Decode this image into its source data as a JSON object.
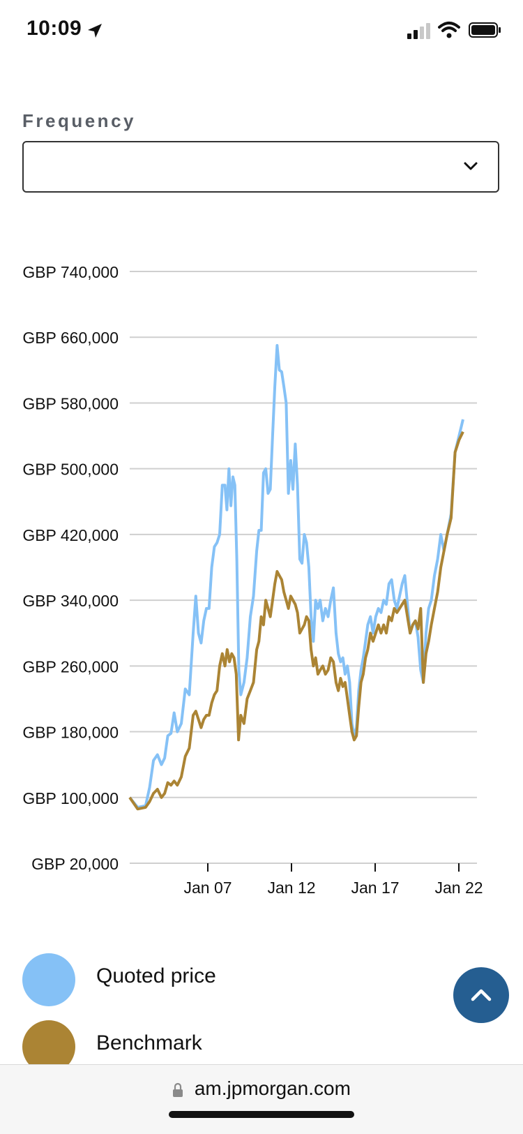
{
  "status_bar": {
    "time": "10:09"
  },
  "frequency": {
    "label": "Frequency",
    "selected": ""
  },
  "chart_data": {
    "type": "line",
    "ylim": [
      20000,
      740000
    ],
    "yticks": [
      20000,
      100000,
      180000,
      260000,
      340000,
      420000,
      500000,
      580000,
      660000,
      740000
    ],
    "ytick_labels": [
      "GBP 20,000",
      "GBP 100,000",
      "GBP 180,000",
      "GBP 260,000",
      "GBP 340,000",
      "GBP 420,000",
      "GBP 500,000",
      "GBP 580,000",
      "GBP 660,000",
      "GBP 740,000"
    ],
    "xticks": [
      "Jan 07",
      "Jan 12",
      "Jan 17",
      "Jan 22"
    ],
    "xlim": [
      "Jan 02",
      "Jan 23"
    ],
    "grid": true,
    "series": [
      {
        "name": "Quoted price",
        "color": "#85c1f6",
        "points": [
          [
            "Jan 02",
            100000
          ],
          [
            "Jan 02",
            88000
          ],
          [
            "Jan 03",
            90000
          ],
          [
            "Jan 03",
            112000
          ],
          [
            "Jan 03",
            145000
          ],
          [
            "Jan 03",
            152000
          ],
          [
            "Jan 04",
            140000
          ],
          [
            "Jan 04",
            148000
          ],
          [
            "Jan 04",
            175000
          ],
          [
            "Jan 04",
            178000
          ],
          [
            "Jan 04",
            203000
          ],
          [
            "Jan 05",
            180000
          ],
          [
            "Jan 05",
            190000
          ],
          [
            "Jan 05",
            232000
          ],
          [
            "Jan 05",
            225000
          ],
          [
            "Jan 06",
            300000
          ],
          [
            "Jan 06",
            345000
          ],
          [
            "Jan 06",
            300000
          ],
          [
            "Jan 06",
            288000
          ],
          [
            "Jan 06",
            315000
          ],
          [
            "Jan 06",
            330000
          ],
          [
            "Jan 07",
            330000
          ],
          [
            "Jan 07",
            380000
          ],
          [
            "Jan 07",
            405000
          ],
          [
            "Jan 07",
            410000
          ],
          [
            "Jan 07",
            420000
          ],
          [
            "Jan 07",
            480000
          ],
          [
            "Jan 08",
            480000
          ],
          [
            "Jan 08",
            450000
          ],
          [
            "Jan 08",
            500000
          ],
          [
            "Jan 08",
            455000
          ],
          [
            "Jan 08",
            490000
          ],
          [
            "Jan 08",
            480000
          ],
          [
            "Jan 08",
            390000
          ],
          [
            "Jan 08",
            255000
          ],
          [
            "Jan 09",
            225000
          ],
          [
            "Jan 09",
            240000
          ],
          [
            "Jan 09",
            270000
          ],
          [
            "Jan 09",
            320000
          ],
          [
            "Jan 09",
            345000
          ],
          [
            "Jan 10",
            400000
          ],
          [
            "Jan 10",
            425000
          ],
          [
            "Jan 10",
            425000
          ],
          [
            "Jan 10",
            495000
          ],
          [
            "Jan 10",
            500000
          ],
          [
            "Jan 10",
            470000
          ],
          [
            "Jan 10",
            475000
          ],
          [
            "Jan 11",
            540000
          ],
          [
            "Jan 11",
            600000
          ],
          [
            "Jan 11",
            650000
          ],
          [
            "Jan 11",
            620000
          ],
          [
            "Jan 11",
            618000
          ],
          [
            "Jan 11",
            600000
          ],
          [
            "Jan 11",
            580000
          ],
          [
            "Jan 12",
            470000
          ],
          [
            "Jan 12",
            510000
          ],
          [
            "Jan 12",
            475000
          ],
          [
            "Jan 12",
            530000
          ],
          [
            "Jan 12",
            480000
          ],
          [
            "Jan 12",
            390000
          ],
          [
            "Jan 12",
            385000
          ],
          [
            "Jan 13",
            420000
          ],
          [
            "Jan 13",
            410000
          ],
          [
            "Jan 13",
            380000
          ],
          [
            "Jan 13",
            320000
          ],
          [
            "Jan 13",
            290000
          ],
          [
            "Jan 13",
            340000
          ],
          [
            "Jan 13",
            330000
          ],
          [
            "Jan 14",
            340000
          ],
          [
            "Jan 14",
            315000
          ],
          [
            "Jan 14",
            330000
          ],
          [
            "Jan 14",
            320000
          ],
          [
            "Jan 14",
            340000
          ],
          [
            "Jan 14",
            355000
          ],
          [
            "Jan 15",
            300000
          ],
          [
            "Jan 15",
            275000
          ],
          [
            "Jan 15",
            265000
          ],
          [
            "Jan 15",
            270000
          ],
          [
            "Jan 15",
            250000
          ],
          [
            "Jan 15",
            260000
          ],
          [
            "Jan 15",
            240000
          ],
          [
            "Jan 16",
            190000
          ],
          [
            "Jan 16",
            175000
          ],
          [
            "Jan 16",
            185000
          ],
          [
            "Jan 16",
            230000
          ],
          [
            "Jan 16",
            255000
          ],
          [
            "Jan 16",
            270000
          ],
          [
            "Jan 16",
            290000
          ],
          [
            "Jan 17",
            310000
          ],
          [
            "Jan 17",
            320000
          ],
          [
            "Jan 17",
            300000
          ],
          [
            "Jan 17",
            320000
          ],
          [
            "Jan 17",
            330000
          ],
          [
            "Jan 17",
            325000
          ],
          [
            "Jan 18",
            340000
          ],
          [
            "Jan 18",
            335000
          ],
          [
            "Jan 18",
            360000
          ],
          [
            "Jan 18",
            365000
          ],
          [
            "Jan 18",
            340000
          ],
          [
            "Jan 18",
            330000
          ],
          [
            "Jan 19",
            345000
          ],
          [
            "Jan 19",
            360000
          ],
          [
            "Jan 19",
            370000
          ],
          [
            "Jan 19",
            335000
          ],
          [
            "Jan 19",
            300000
          ],
          [
            "Jan 19",
            310000
          ],
          [
            "Jan 20",
            315000
          ],
          [
            "Jan 20",
            295000
          ],
          [
            "Jan 20",
            255000
          ],
          [
            "Jan 20",
            240000
          ],
          [
            "Jan 20",
            300000
          ],
          [
            "Jan 20",
            330000
          ],
          [
            "Jan 21",
            340000
          ],
          [
            "Jan 21",
            370000
          ],
          [
            "Jan 21",
            390000
          ],
          [
            "Jan 21",
            420000
          ],
          [
            "Jan 21",
            400000
          ],
          [
            "Jan 22",
            420000
          ],
          [
            "Jan 22",
            445000
          ],
          [
            "Jan 22",
            520000
          ],
          [
            "Jan 22",
            540000
          ],
          [
            "Jan 23",
            560000
          ]
        ]
      },
      {
        "name": "Benchmark",
        "color": "#ab8434",
        "points": [
          [
            "Jan 02",
            100000
          ],
          [
            "Jan 02",
            86000
          ],
          [
            "Jan 03",
            88000
          ],
          [
            "Jan 03",
            95000
          ],
          [
            "Jan 03",
            105000
          ],
          [
            "Jan 03",
            110000
          ],
          [
            "Jan 04",
            100000
          ],
          [
            "Jan 04",
            105000
          ],
          [
            "Jan 04",
            118000
          ],
          [
            "Jan 04",
            115000
          ],
          [
            "Jan 04",
            120000
          ],
          [
            "Jan 05",
            115000
          ],
          [
            "Jan 05",
            125000
          ],
          [
            "Jan 05",
            150000
          ],
          [
            "Jan 05",
            160000
          ],
          [
            "Jan 06",
            200000
          ],
          [
            "Jan 06",
            205000
          ],
          [
            "Jan 06",
            195000
          ],
          [
            "Jan 06",
            185000
          ],
          [
            "Jan 06",
            195000
          ],
          [
            "Jan 06",
            200000
          ],
          [
            "Jan 07",
            200000
          ],
          [
            "Jan 07",
            215000
          ],
          [
            "Jan 07",
            225000
          ],
          [
            "Jan 07",
            230000
          ],
          [
            "Jan 07",
            260000
          ],
          [
            "Jan 07",
            275000
          ],
          [
            "Jan 08",
            260000
          ],
          [
            "Jan 08",
            280000
          ],
          [
            "Jan 08",
            265000
          ],
          [
            "Jan 08",
            275000
          ],
          [
            "Jan 08",
            270000
          ],
          [
            "Jan 08",
            250000
          ],
          [
            "Jan 08",
            170000
          ],
          [
            "Jan 09",
            200000
          ],
          [
            "Jan 09",
            190000
          ],
          [
            "Jan 09",
            220000
          ],
          [
            "Jan 09",
            230000
          ],
          [
            "Jan 09",
            240000
          ],
          [
            "Jan 10",
            280000
          ],
          [
            "Jan 10",
            290000
          ],
          [
            "Jan 10",
            320000
          ],
          [
            "Jan 10",
            310000
          ],
          [
            "Jan 10",
            340000
          ],
          [
            "Jan 10",
            330000
          ],
          [
            "Jan 10",
            320000
          ],
          [
            "Jan 11",
            340000
          ],
          [
            "Jan 11",
            360000
          ],
          [
            "Jan 11",
            375000
          ],
          [
            "Jan 11",
            370000
          ],
          [
            "Jan 11",
            365000
          ],
          [
            "Jan 11",
            350000
          ],
          [
            "Jan 11",
            340000
          ],
          [
            "Jan 12",
            330000
          ],
          [
            "Jan 12",
            345000
          ],
          [
            "Jan 12",
            340000
          ],
          [
            "Jan 12",
            335000
          ],
          [
            "Jan 12",
            325000
          ],
          [
            "Jan 12",
            300000
          ],
          [
            "Jan 12",
            305000
          ],
          [
            "Jan 13",
            310000
          ],
          [
            "Jan 13",
            320000
          ],
          [
            "Jan 13",
            315000
          ],
          [
            "Jan 13",
            280000
          ],
          [
            "Jan 13",
            260000
          ],
          [
            "Jan 13",
            270000
          ],
          [
            "Jan 13",
            250000
          ],
          [
            "Jan 14",
            255000
          ],
          [
            "Jan 14",
            260000
          ],
          [
            "Jan 14",
            250000
          ],
          [
            "Jan 14",
            255000
          ],
          [
            "Jan 14",
            270000
          ],
          [
            "Jan 14",
            265000
          ],
          [
            "Jan 15",
            240000
          ],
          [
            "Jan 15",
            230000
          ],
          [
            "Jan 15",
            245000
          ],
          [
            "Jan 15",
            235000
          ],
          [
            "Jan 15",
            240000
          ],
          [
            "Jan 15",
            220000
          ],
          [
            "Jan 15",
            200000
          ],
          [
            "Jan 16",
            180000
          ],
          [
            "Jan 16",
            170000
          ],
          [
            "Jan 16",
            175000
          ],
          [
            "Jan 16",
            210000
          ],
          [
            "Jan 16",
            240000
          ],
          [
            "Jan 16",
            250000
          ],
          [
            "Jan 16",
            270000
          ],
          [
            "Jan 17",
            280000
          ],
          [
            "Jan 17",
            300000
          ],
          [
            "Jan 17",
            290000
          ],
          [
            "Jan 17",
            300000
          ],
          [
            "Jan 17",
            310000
          ],
          [
            "Jan 17",
            300000
          ],
          [
            "Jan 18",
            310000
          ],
          [
            "Jan 18",
            300000
          ],
          [
            "Jan 18",
            320000
          ],
          [
            "Jan 18",
            315000
          ],
          [
            "Jan 18",
            330000
          ],
          [
            "Jan 18",
            325000
          ],
          [
            "Jan 19",
            330000
          ],
          [
            "Jan 19",
            335000
          ],
          [
            "Jan 19",
            340000
          ],
          [
            "Jan 19",
            320000
          ],
          [
            "Jan 19",
            300000
          ],
          [
            "Jan 19",
            310000
          ],
          [
            "Jan 20",
            315000
          ],
          [
            "Jan 20",
            305000
          ],
          [
            "Jan 20",
            330000
          ],
          [
            "Jan 20",
            240000
          ],
          [
            "Jan 20",
            275000
          ],
          [
            "Jan 20",
            290000
          ],
          [
            "Jan 21",
            310000
          ],
          [
            "Jan 21",
            330000
          ],
          [
            "Jan 21",
            350000
          ],
          [
            "Jan 21",
            380000
          ],
          [
            "Jan 21",
            400000
          ],
          [
            "Jan 22",
            420000
          ],
          [
            "Jan 22",
            440000
          ],
          [
            "Jan 22",
            520000
          ],
          [
            "Jan 22",
            535000
          ],
          [
            "Jan 23",
            545000
          ]
        ]
      }
    ]
  },
  "legend": [
    {
      "label": "Quoted price",
      "color": "#85c1f6"
    },
    {
      "label": "Benchmark",
      "color": "#ab8434"
    }
  ],
  "scroll_top": {
    "icon": "chevron-up-icon"
  },
  "browser": {
    "url": "am.jpmorgan.com"
  }
}
